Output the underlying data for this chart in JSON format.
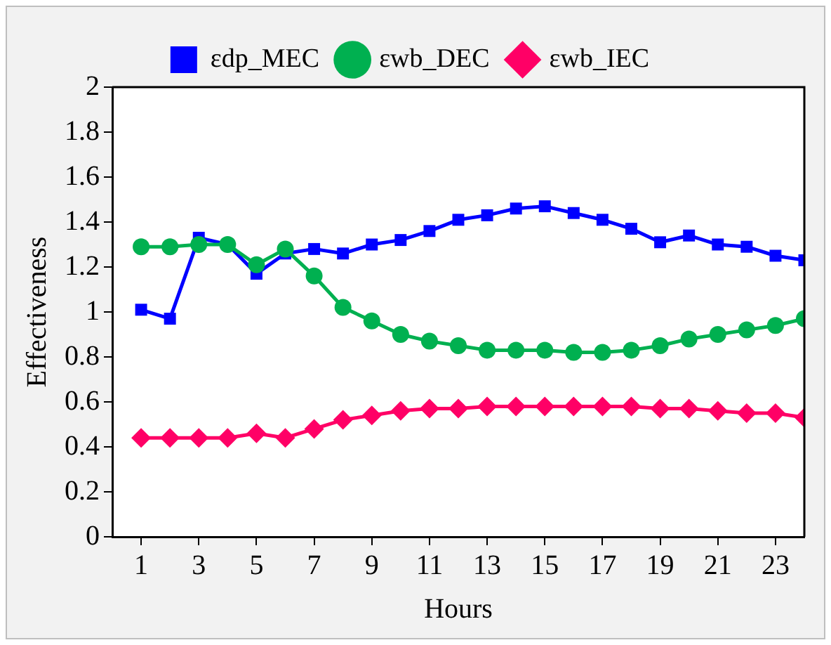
{
  "chart_data": {
    "type": "line",
    "xlabel": "Hours",
    "ylabel": "Effectiveness",
    "x": [
      1,
      2,
      3,
      4,
      5,
      6,
      7,
      8,
      9,
      10,
      11,
      12,
      13,
      14,
      15,
      16,
      17,
      18,
      19,
      20,
      21,
      22,
      23,
      24
    ],
    "xlim": [
      0,
      24
    ],
    "xticks": [
      1,
      3,
      5,
      7,
      9,
      11,
      13,
      15,
      17,
      19,
      21,
      23
    ],
    "ylim": [
      0,
      2
    ],
    "yticks": [
      0,
      0.2,
      0.4,
      0.6,
      0.8,
      1,
      1.2,
      1.4,
      1.6,
      1.8,
      2
    ],
    "grid": false,
    "legend": "top",
    "line_style": "solid",
    "series": [
      {
        "name": "εdp_MEC",
        "color": "#0000ff",
        "marker": "square",
        "values": [
          1.01,
          0.97,
          1.33,
          1.3,
          1.17,
          1.26,
          1.28,
          1.26,
          1.3,
          1.32,
          1.36,
          1.41,
          1.43,
          1.46,
          1.47,
          1.44,
          1.41,
          1.37,
          1.31,
          1.34,
          1.3,
          1.29,
          1.25,
          1.23
        ]
      },
      {
        "name": "εwb_DEC",
        "color": "#00b050",
        "marker": "circle",
        "values": [
          1.29,
          1.29,
          1.3,
          1.3,
          1.21,
          1.28,
          1.16,
          1.02,
          0.96,
          0.9,
          0.87,
          0.85,
          0.83,
          0.83,
          0.83,
          0.82,
          0.82,
          0.83,
          0.85,
          0.88,
          0.9,
          0.92,
          0.94,
          0.97
        ]
      },
      {
        "name": "εwb_IEC",
        "color": "#ff0066",
        "marker": "diamond",
        "values": [
          0.44,
          0.44,
          0.44,
          0.44,
          0.46,
          0.44,
          0.48,
          0.52,
          0.54,
          0.56,
          0.57,
          0.57,
          0.58,
          0.58,
          0.58,
          0.58,
          0.58,
          0.58,
          0.57,
          0.57,
          0.56,
          0.55,
          0.55,
          0.53
        ]
      }
    ]
  }
}
